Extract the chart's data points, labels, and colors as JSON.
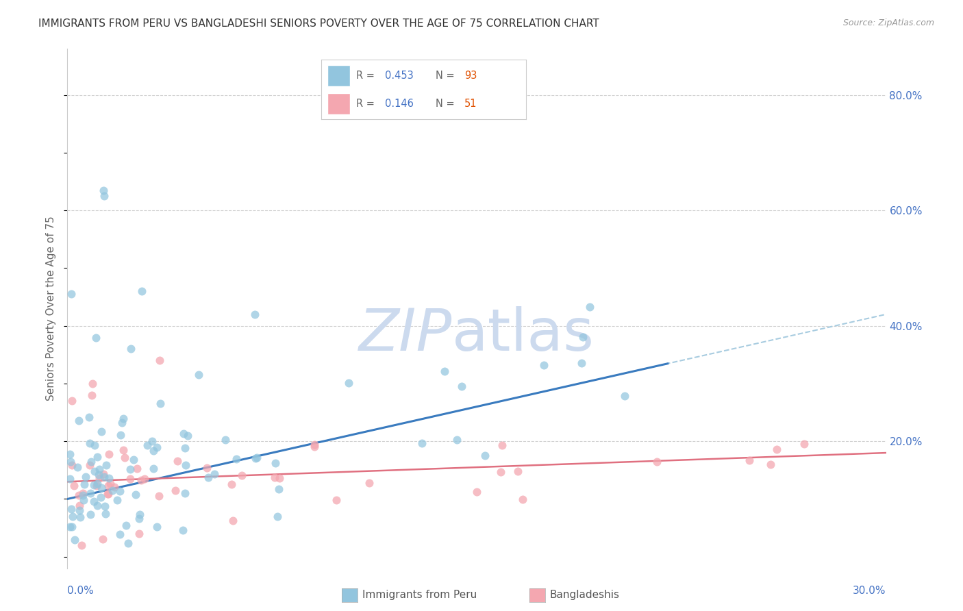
{
  "title": "IMMIGRANTS FROM PERU VS BANGLADESHI SENIORS POVERTY OVER THE AGE OF 75 CORRELATION CHART",
  "source": "Source: ZipAtlas.com",
  "ylabel": "Seniors Poverty Over the Age of 75",
  "xlim": [
    0.0,
    0.3
  ],
  "ylim": [
    -0.02,
    0.88
  ],
  "peru_color": "#92c5de",
  "bangladesh_color": "#f4a7b0",
  "peru_line_color": "#3a7bbf",
  "bangladesh_line_color": "#e07080",
  "dashed_line_color": "#a8cce0",
  "grid_color": "#d0d0d0",
  "tick_label_color": "#4472c4",
  "n_value_color": "#e05000",
  "watermark_zip_color": "#ccdaee",
  "watermark_atlas_color": "#ccdaee",
  "background_color": "#ffffff",
  "legend_r1": "R =  0.453",
  "legend_n1": "N = 93",
  "legend_r2": "R =  0.146",
  "legend_n2": "N = 51",
  "legend_label1": "Immigrants from Peru",
  "legend_label2": "Bangladeshis"
}
